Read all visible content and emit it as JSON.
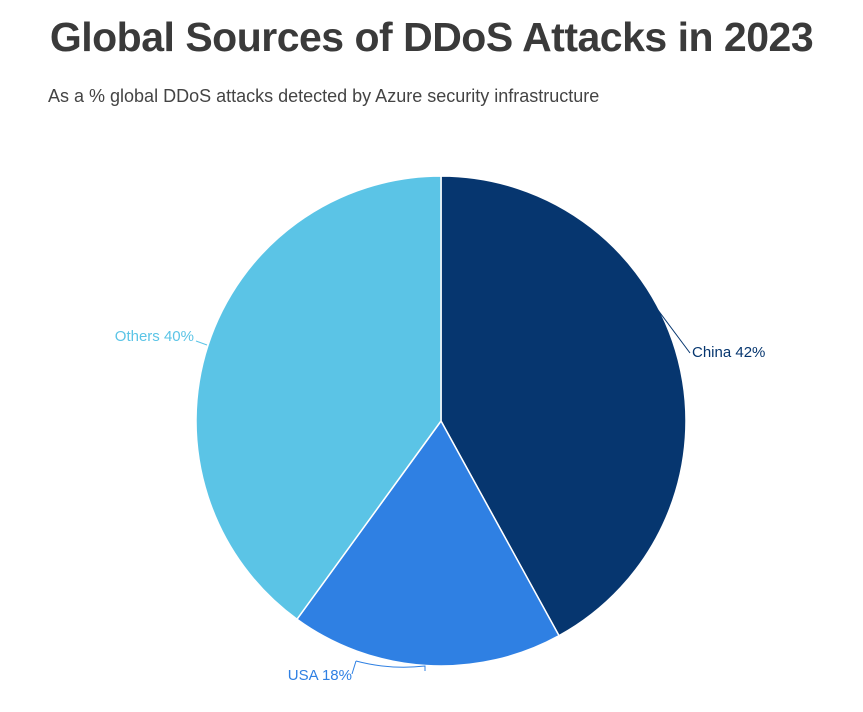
{
  "chart_data": {
    "type": "pie",
    "title": "Global Sources of DDoS Attacks in 2023",
    "subtitle": "As a % global DDoS attacks detected by Azure security infrastructure",
    "slices": [
      {
        "label": "China",
        "value": 42,
        "display": "China 42%",
        "color": "#06366f"
      },
      {
        "label": "USA",
        "value": 18,
        "display": "USA 18%",
        "color": "#2f80e3"
      },
      {
        "label": "Others",
        "value": 40,
        "display": "Others 40%",
        "color": "#5bc4e6"
      }
    ],
    "start_angle": "top, clockwise",
    "legend": "none"
  }
}
